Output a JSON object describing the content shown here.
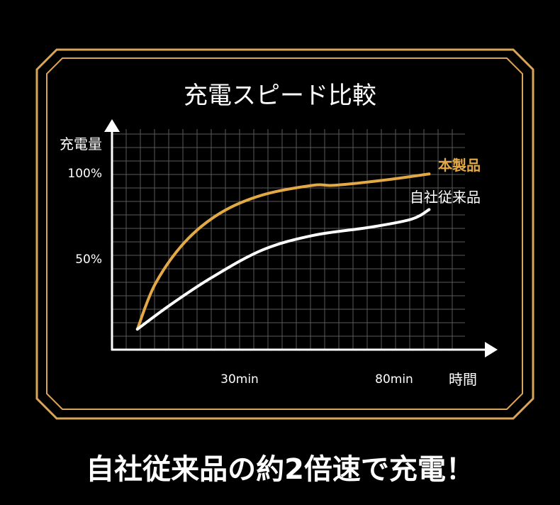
{
  "colors": {
    "background": "#000000",
    "frame": "#d9a55a",
    "product": "#e3a945",
    "conventional": "#ffffff",
    "grid": "#5a5a5a"
  },
  "chart_data": {
    "type": "line",
    "title": "充電スピード比較",
    "ylabel": "充電量",
    "xlabel": "時間",
    "x_ticks": [
      {
        "value": 30,
        "label": "30min"
      },
      {
        "value": 80,
        "label": "80min"
      }
    ],
    "y_ticks": [
      {
        "value": 50,
        "label": "50%"
      },
      {
        "value": 100,
        "label": "100%"
      }
    ],
    "grid": true,
    "legend": "inline-right",
    "series": [
      {
        "name": "本製品",
        "x": [
          -6,
          0,
          10,
          22,
          36,
          53,
          60,
          76,
          92
        ],
        "y": [
          3,
          31,
          57,
          75,
          86,
          92,
          92,
          95,
          99
        ]
      },
      {
        "name": "自社従来品",
        "x": [
          -6,
          5,
          19,
          36,
          53,
          72,
          86,
          92
        ],
        "y": [
          3,
          18,
          35,
          52,
          61,
          66,
          71,
          77
        ]
      }
    ]
  },
  "caption": "自社従来品の約2倍速で充電！"
}
